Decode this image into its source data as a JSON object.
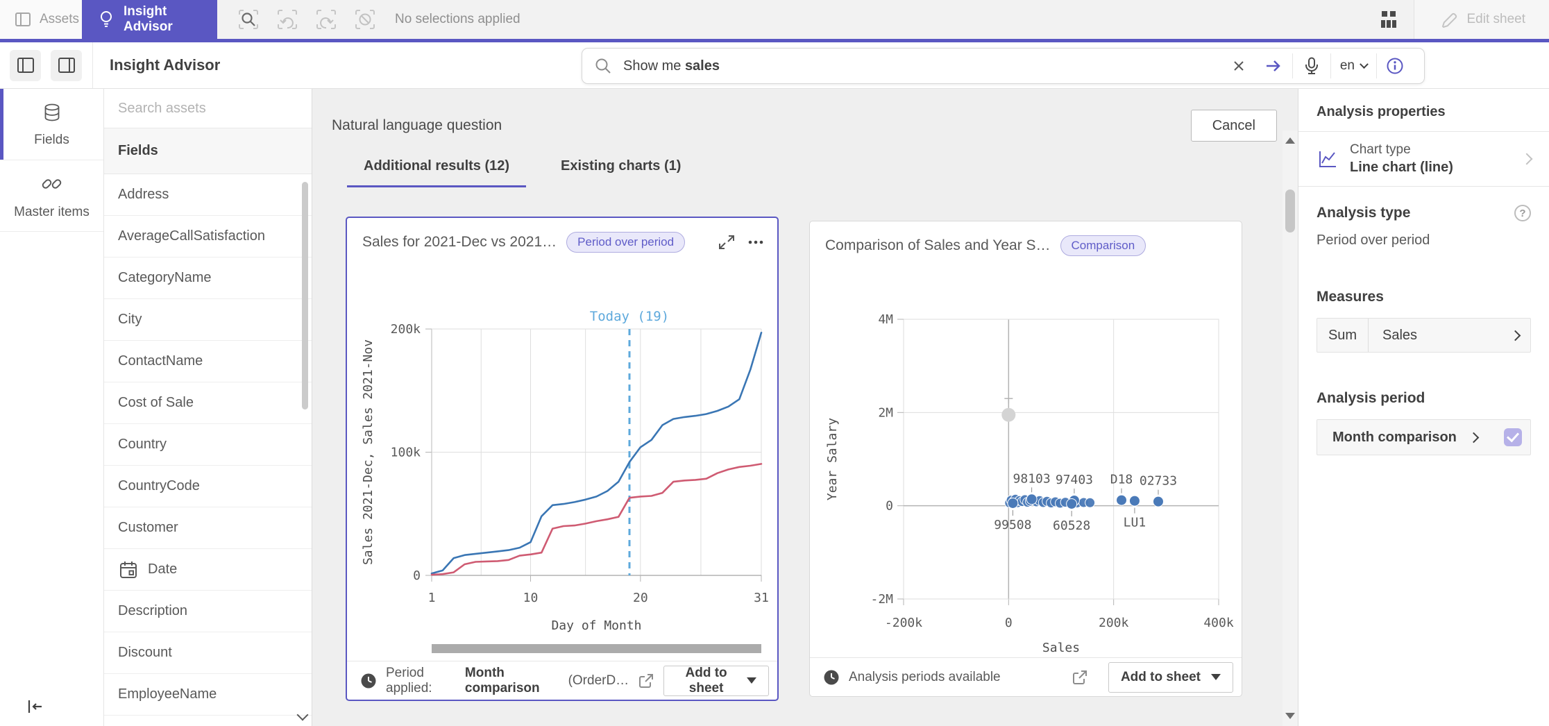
{
  "brand_color": "#5a57c2",
  "topbar": {
    "assets": "Assets",
    "insight_advisor": "Insight Advisor",
    "no_selections": "No selections applied",
    "edit_sheet": "Edit sheet"
  },
  "header": {
    "title": "Insight Advisor",
    "search_prefix": "Show me ",
    "search_term": "sales",
    "lang": "en"
  },
  "nav": {
    "fields": "Fields",
    "master_items": "Master items"
  },
  "assets": {
    "search_placeholder": "Search assets",
    "section": "Fields",
    "fields": [
      {
        "label": "Address"
      },
      {
        "label": "AverageCallSatisfaction"
      },
      {
        "label": "CategoryName"
      },
      {
        "label": "City"
      },
      {
        "label": "ContactName"
      },
      {
        "label": "Cost of Sale"
      },
      {
        "label": "Country"
      },
      {
        "label": "CountryCode"
      },
      {
        "label": "Customer"
      },
      {
        "label": "Date",
        "icon": "calendar"
      },
      {
        "label": "Description"
      },
      {
        "label": "Discount"
      },
      {
        "label": "EmployeeName"
      }
    ]
  },
  "main": {
    "title": "Natural language question",
    "cancel": "Cancel",
    "tabs": [
      {
        "label": "Additional results (12)",
        "active": true
      },
      {
        "label": "Existing charts (1)",
        "active": false
      }
    ]
  },
  "cards": [
    {
      "title": "Sales for 2021-Dec vs 2021…",
      "badge": "Period over period",
      "footer": {
        "prefix": "Period applied:",
        "bold": "Month comparison",
        "suffix": "(OrderD…"
      },
      "button": "Add to sheet"
    },
    {
      "title": "Comparison of Sales and Year S…",
      "badge": "Comparison",
      "footer": {
        "text": "Analysis periods available"
      },
      "button": "Add to sheet"
    }
  ],
  "props": {
    "title": "Analysis properties",
    "chart_type_label": "Chart type",
    "chart_type_value": "Line chart (line)",
    "analysis_type_label": "Analysis type",
    "analysis_type_value": "Period over period",
    "measures_label": "Measures",
    "measure_agg": "Sum",
    "measure_name": "Sales",
    "analysis_period_label": "Analysis period",
    "analysis_period_value": "Month comparison"
  },
  "chart_data": [
    {
      "type": "line",
      "title": "Sales for 2021-Dec vs 2021…",
      "xlabel": "Day of Month",
      "ylabel": "Sales 2021-Dec, Sales 2021-Nov",
      "xlim": [
        1,
        31
      ],
      "ylim": [
        0,
        200000
      ],
      "x_ticks": [
        [
          1,
          "1"
        ],
        [
          10,
          "10"
        ],
        [
          20,
          "20"
        ],
        [
          31,
          "31"
        ]
      ],
      "y_ticks": [
        [
          0,
          "0"
        ],
        [
          100000,
          "100k"
        ],
        [
          200000,
          "200k"
        ]
      ],
      "x_gridlines": [
        1,
        5.5,
        10,
        15,
        20,
        25.5,
        31
      ],
      "annotation": {
        "label": "Today (19)",
        "x": 19,
        "color": "#5ea9dc"
      },
      "x": [
        1,
        2,
        3,
        4,
        5,
        6,
        7,
        8,
        9,
        10,
        11,
        12,
        13,
        14,
        15,
        16,
        17,
        18,
        19,
        20,
        21,
        22,
        23,
        24,
        25,
        26,
        27,
        28,
        29,
        30,
        31
      ],
      "series": [
        {
          "name": "Sales 2021-Dec",
          "color": "#3a76b4",
          "values": [
            1500,
            4000,
            14000,
            16500,
            17500,
            18500,
            19500,
            20500,
            22500,
            27000,
            48000,
            57000,
            58000,
            59500,
            61500,
            64000,
            68500,
            76000,
            92000,
            104000,
            110000,
            122000,
            127000,
            128500,
            129500,
            131000,
            133500,
            137000,
            143000,
            167000,
            197000
          ]
        },
        {
          "name": "Sales 2021-Nov",
          "color": "#cf5b72",
          "values": [
            500,
            1000,
            2500,
            9000,
            11000,
            11300,
            11600,
            12500,
            16000,
            17000,
            18500,
            38000,
            40000,
            40500,
            42000,
            44000,
            45500,
            47500,
            63000,
            64000,
            64500,
            67000,
            76000,
            77000,
            77500,
            78500,
            83000,
            86000,
            88000,
            89000,
            90500
          ]
        }
      ]
    },
    {
      "type": "scatter",
      "title": "Comparison of Sales and Year S…",
      "xlabel": "Sales",
      "ylabel": "Year Salary",
      "xlim": [
        -200000,
        400000
      ],
      "ylim": [
        -2000000,
        4000000
      ],
      "x_ticks": [
        [
          -200000,
          "-200k"
        ],
        [
          0,
          "0"
        ],
        [
          200000,
          "200k"
        ],
        [
          400000,
          "400k"
        ]
      ],
      "y_ticks": [
        [
          -2000000,
          "-2M"
        ],
        [
          0,
          "0"
        ],
        [
          2000000,
          "2M"
        ],
        [
          4000000,
          "4M"
        ]
      ],
      "point_color": "#4a7ab8",
      "outlier": {
        "x": 0,
        "y": 1950000,
        "whisker_y": 2300000,
        "color": "#d4d4d4"
      },
      "labeled_points": [
        {
          "label": "98103",
          "x": 44000,
          "y": 140000,
          "pos": "above"
        },
        {
          "label": "97403",
          "x": 125000,
          "y": 115000,
          "pos": "above"
        },
        {
          "label": "99508",
          "x": 8000,
          "y": 55000,
          "pos": "below"
        },
        {
          "label": "60528",
          "x": 120000,
          "y": 40000,
          "pos": "below"
        },
        {
          "label": "D18",
          "x": 215000,
          "y": 120000,
          "pos": "above"
        },
        {
          "label": "LU1",
          "x": 240000,
          "y": 105000,
          "pos": "below"
        },
        {
          "label": "02733",
          "x": 285000,
          "y": 90000,
          "pos": "above"
        }
      ],
      "points": [
        [
          2000,
          60000
        ],
        [
          5000,
          120000
        ],
        [
          9000,
          80000
        ],
        [
          13000,
          140000
        ],
        [
          17000,
          65000
        ],
        [
          21000,
          110000
        ],
        [
          26000,
          90000
        ],
        [
          31000,
          130000
        ],
        [
          36000,
          75000
        ],
        [
          41000,
          100000
        ],
        [
          47000,
          135000
        ],
        [
          53000,
          85000
        ],
        [
          59000,
          110000
        ],
        [
          66000,
          70000
        ],
        [
          73000,
          95000
        ],
        [
          81000,
          60000
        ],
        [
          89000,
          85000
        ],
        [
          98000,
          55000
        ],
        [
          108000,
          75000
        ],
        [
          130000,
          60000
        ],
        [
          143000,
          70000
        ],
        [
          155000,
          65000
        ]
      ]
    }
  ]
}
